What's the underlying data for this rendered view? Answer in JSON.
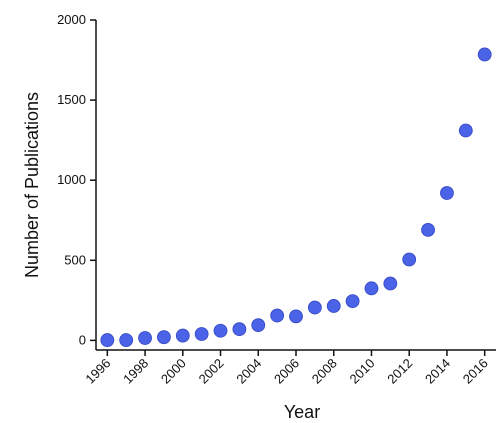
{
  "chart_data": {
    "type": "scatter",
    "xlabel": "Year",
    "ylabel": "Number of Publications",
    "xlim": [
      1995.4,
      2016.6
    ],
    "ylim": [
      -60,
      2000
    ],
    "x_ticks": [
      "1996",
      "1998",
      "2000",
      "2002",
      "2004",
      "2006",
      "2008",
      "2010",
      "2012",
      "2014",
      "2016"
    ],
    "y_ticks": [
      "0",
      "500",
      "1000",
      "1500",
      "2000"
    ],
    "marker_color": "#4b63e6",
    "series": [
      {
        "x": [
          1996,
          1997,
          1998,
          1999,
          2000,
          2001,
          2002,
          2003,
          2004,
          2005,
          2006,
          2007,
          2008,
          2009,
          2010,
          2011,
          2012,
          2013,
          2014,
          2015,
          2016
        ],
        "y": [
          2,
          2,
          15,
          20,
          30,
          40,
          60,
          70,
          95,
          155,
          150,
          205,
          215,
          245,
          325,
          355,
          505,
          690,
          920,
          1310,
          1785
        ]
      }
    ]
  }
}
